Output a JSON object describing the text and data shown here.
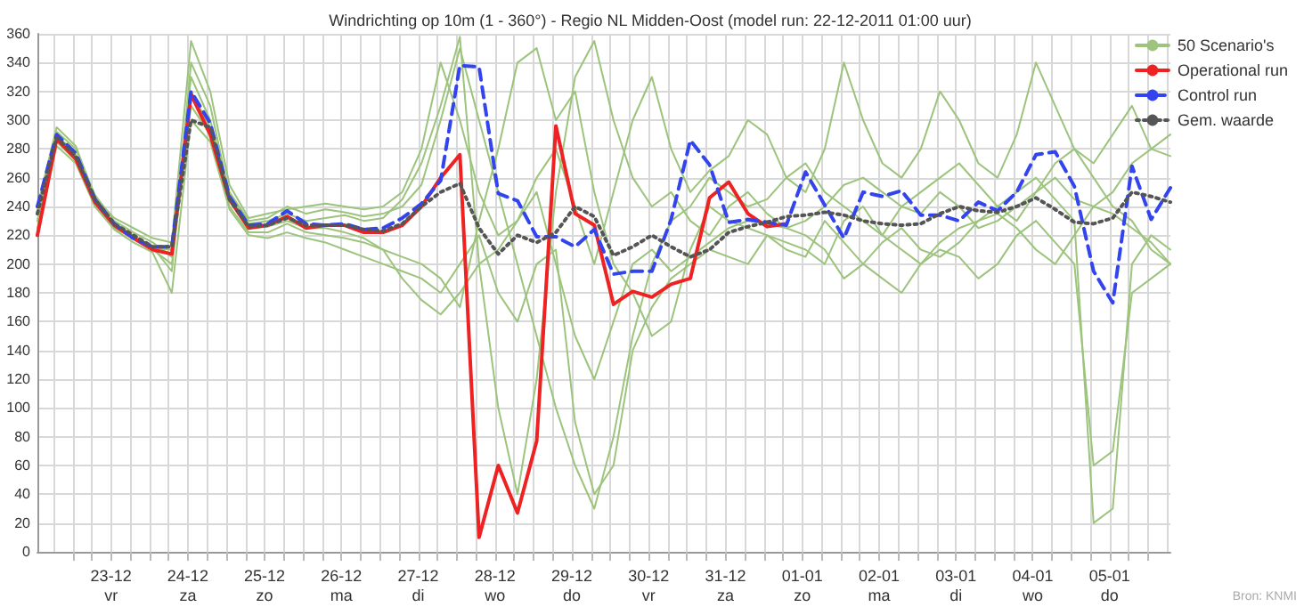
{
  "chart_data": {
    "type": "line",
    "title": "Windrichting op 10m (1 - 360°) - Regio NL Midden-Oost (model run: 22-12-2011 01:00 uur)",
    "annotations": [
      "Bron: KNMI"
    ],
    "x": [
      "2011-12-22T01:00",
      "2011-12-22T07:00",
      "2011-12-22T13:00",
      "2011-12-22T19:00",
      "2011-12-23T01:00",
      "2011-12-23T07:00",
      "2011-12-23T13:00",
      "2011-12-23T19:00",
      "2011-12-24T01:00",
      "2011-12-24T07:00",
      "2011-12-24T13:00",
      "2011-12-24T19:00",
      "2011-12-25T01:00",
      "2011-12-25T07:00",
      "2011-12-25T13:00",
      "2011-12-25T19:00",
      "2011-12-26T01:00",
      "2011-12-26T07:00",
      "2011-12-26T13:00",
      "2011-12-26T19:00",
      "2011-12-27T01:00",
      "2011-12-27T07:00",
      "2011-12-27T13:00",
      "2011-12-27T19:00",
      "2011-12-28T01:00",
      "2011-12-28T07:00",
      "2011-12-28T13:00",
      "2011-12-28T19:00",
      "2011-12-29T01:00",
      "2011-12-29T07:00",
      "2011-12-29T13:00",
      "2011-12-29T19:00",
      "2011-12-30T01:00",
      "2011-12-30T07:00",
      "2011-12-30T13:00",
      "2011-12-30T19:00",
      "2011-12-31T01:00",
      "2011-12-31T07:00",
      "2011-12-31T13:00",
      "2011-12-31T19:00",
      "2012-01-01T01:00",
      "2012-01-01T07:00",
      "2012-01-01T13:00",
      "2012-01-01T19:00",
      "2012-01-02T01:00",
      "2012-01-02T07:00",
      "2012-01-02T13:00",
      "2012-01-02T19:00",
      "2012-01-03T01:00",
      "2012-01-03T07:00",
      "2012-01-03T13:00",
      "2012-01-03T19:00",
      "2012-01-04T01:00",
      "2012-01-04T07:00",
      "2012-01-04T13:00",
      "2012-01-04T19:00",
      "2012-01-05T01:00",
      "2012-01-05T07:00",
      "2012-01-05T13:00",
      "2012-01-05T19:00"
    ],
    "series": [
      {
        "name": "50 Scenario's",
        "color": "#9cc47c",
        "line_style": "solid",
        "values": [
          235,
          292,
          280,
          248,
          230,
          222,
          215,
          205,
          330,
          300,
          250,
          230,
          232,
          240,
          235,
          238,
          236,
          233,
          235,
          240,
          255,
          300,
          350,
          300,
          250,
          200,
          150,
          100,
          60,
          30,
          80,
          150,
          200,
          230,
          240,
          260,
          250,
          240,
          245,
          260,
          270,
          250,
          240,
          230,
          220,
          240,
          250,
          260,
          270,
          255,
          240,
          230,
          250,
          260,
          245,
          240,
          250,
          270,
          280,
          275
        ]
      },
      {
        "color": "#9cc47c",
        "line_style": "solid",
        "values": [
          230,
          285,
          272,
          240,
          225,
          218,
          210,
          200,
          310,
          290,
          240,
          222,
          222,
          228,
          222,
          220,
          218,
          215,
          210,
          205,
          200,
          190,
          170,
          230,
          280,
          340,
          350,
          300,
          320,
          250,
          200,
          180,
          150,
          160,
          210,
          240,
          230,
          225,
          220,
          215,
          210,
          200,
          230,
          240,
          220,
          210,
          200,
          215,
          225,
          230,
          240,
          250,
          260,
          245,
          230,
          20,
          30,
          200,
          220,
          210
        ]
      },
      {
        "color": "#9cc47c",
        "line_style": "solid",
        "values": [
          238,
          290,
          276,
          244,
          228,
          220,
          212,
          195,
          340,
          310,
          248,
          228,
          230,
          235,
          230,
          232,
          234,
          230,
          232,
          245,
          270,
          310,
          358,
          200,
          100,
          40,
          120,
          250,
          330,
          355,
          300,
          260,
          240,
          250,
          230,
          220,
          240,
          250,
          235,
          225,
          230,
          240,
          255,
          260,
          250,
          240,
          235,
          250,
          240,
          225,
          230,
          240,
          250,
          270,
          280,
          260,
          240,
          230,
          210,
          200
        ]
      },
      {
        "color": "#9cc47c",
        "line_style": "solid",
        "values": [
          225,
          282,
          270,
          240,
          224,
          215,
          208,
          180,
          300,
          285,
          238,
          220,
          218,
          222,
          218,
          215,
          210,
          205,
          200,
          195,
          190,
          180,
          200,
          220,
          180,
          160,
          200,
          210,
          90,
          40,
          60,
          140,
          170,
          190,
          200,
          210,
          205,
          200,
          220,
          210,
          205,
          230,
          215,
          200,
          190,
          180,
          200,
          210,
          205,
          190,
          200,
          220,
          230,
          215,
          200,
          60,
          70,
          180,
          190,
          200
        ]
      },
      {
        "color": "#9cc47c",
        "line_style": "solid",
        "values": [
          240,
          295,
          282,
          246,
          232,
          225,
          218,
          215,
          355,
          320,
          255,
          232,
          235,
          238,
          240,
          242,
          240,
          238,
          240,
          250,
          280,
          340,
          300,
          250,
          220,
          230,
          260,
          280,
          240,
          200,
          250,
          300,
          330,
          280,
          250,
          265,
          275,
          300,
          290,
          260,
          250,
          280,
          340,
          300,
          270,
          260,
          280,
          320,
          300,
          270,
          260,
          290,
          340,
          310,
          280,
          270,
          290,
          310,
          280,
          290
        ]
      },
      {
        "color": "#9cc47c",
        "line_style": "solid",
        "values": [
          230,
          288,
          275,
          244,
          227,
          219,
          211,
          210,
          320,
          295,
          244,
          225,
          226,
          230,
          225,
          225,
          222,
          218,
          210,
          190,
          175,
          165,
          180,
          200,
          210,
          230,
          250,
          200,
          150,
          120,
          160,
          200,
          210,
          195,
          205,
          215,
          225,
          230,
          228,
          225,
          220,
          210,
          190,
          200,
          215,
          225,
          210,
          205,
          215,
          230,
          235,
          225,
          210,
          200,
          220,
          240,
          235,
          225,
          215,
          200
        ]
      },
      {
        "name": "Operational run",
        "color": "#ee2222",
        "line_style": "solid",
        "values": [
          220,
          287,
          273,
          243,
          227,
          218,
          210,
          207,
          318,
          290,
          245,
          225,
          227,
          233,
          225,
          227,
          227,
          222,
          222,
          227,
          240,
          260,
          276,
          10,
          60,
          27,
          77,
          296,
          235,
          227,
          172,
          181,
          177,
          186,
          190,
          246,
          257,
          235,
          226,
          228,
          null,
          null,
          null,
          null,
          null,
          null,
          null,
          null,
          null,
          null,
          null,
          null,
          null,
          null,
          null,
          null,
          null,
          null,
          null,
          null
        ]
      },
      {
        "name": "Control run",
        "color": "#3344ee",
        "line_style": "dashed",
        "values": [
          240,
          290,
          277,
          245,
          228,
          218,
          212,
          212,
          320,
          298,
          247,
          227,
          228,
          237,
          228,
          227,
          228,
          224,
          225,
          232,
          242,
          258,
          338,
          337,
          249,
          244,
          219,
          219,
          212,
          224,
          193,
          195,
          195,
          231,
          286,
          269,
          229,
          231,
          229,
          227,
          264,
          241,
          218,
          250,
          247,
          251,
          234,
          234,
          230,
          243,
          237,
          250,
          276,
          278,
          254,
          195,
          173,
          268,
          231,
          253
        ]
      },
      {
        "name": "Gem. waarde",
        "color": "#555555",
        "line_style": "dotted",
        "values": [
          235,
          288,
          275,
          245,
          228,
          220,
          212,
          212,
          300,
          295,
          245,
          226,
          227,
          232,
          227,
          227,
          227,
          224,
          223,
          228,
          240,
          250,
          256,
          225,
          207,
          220,
          215,
          222,
          240,
          233,
          206,
          212,
          220,
          212,
          205,
          210,
          222,
          226,
          229,
          233,
          234,
          236,
          234,
          230,
          228,
          227,
          228,
          235,
          240,
          237,
          236,
          240,
          246,
          238,
          229,
          228,
          232,
          250,
          247,
          243
        ]
      }
    ],
    "xlim": [
      "2011-12-22T01:00",
      "2012-01-05T19:00"
    ],
    "xticks": [
      {
        "value": "2011-12-22T06:00",
        "label": null
      },
      {
        "value": "2011-12-22T12:00",
        "label": null
      },
      {
        "value": "2011-12-22T18:00",
        "label": null
      },
      {
        "value": "2011-12-23T00:00",
        "label": "23-12\nvr"
      },
      {
        "value": "2011-12-23T06:00",
        "label": null
      },
      {
        "value": "2011-12-23T12:00",
        "label": null
      },
      {
        "value": "2011-12-23T18:00",
        "label": null
      },
      {
        "value": "2011-12-24T00:00",
        "label": "24-12\nza"
      },
      {
        "value": "2011-12-24T06:00",
        "label": null
      },
      {
        "value": "2011-12-24T12:00",
        "label": null
      },
      {
        "value": "2011-12-24T18:00",
        "label": null
      },
      {
        "value": "2011-12-25T00:00",
        "label": "25-12\nzo"
      },
      {
        "value": "2011-12-25T06:00",
        "label": null
      },
      {
        "value": "2011-12-25T12:00",
        "label": null
      },
      {
        "value": "2011-12-25T18:00",
        "label": null
      },
      {
        "value": "2011-12-26T00:00",
        "label": "26-12\nma"
      },
      {
        "value": "2011-12-26T06:00",
        "label": null
      },
      {
        "value": "2011-12-26T12:00",
        "label": null
      },
      {
        "value": "2011-12-26T18:00",
        "label": null
      },
      {
        "value": "2011-12-27T00:00",
        "label": "27-12\ndi"
      },
      {
        "value": "2011-12-27T06:00",
        "label": null
      },
      {
        "value": "2011-12-27T12:00",
        "label": null
      },
      {
        "value": "2011-12-27T18:00",
        "label": null
      },
      {
        "value": "2011-12-28T00:00",
        "label": "28-12\nwo"
      },
      {
        "value": "2011-12-28T06:00",
        "label": null
      },
      {
        "value": "2011-12-28T12:00",
        "label": null
      },
      {
        "value": "2011-12-28T18:00",
        "label": null
      },
      {
        "value": "2011-12-29T00:00",
        "label": "29-12\ndo"
      },
      {
        "value": "2011-12-29T06:00",
        "label": null
      },
      {
        "value": "2011-12-29T12:00",
        "label": null
      },
      {
        "value": "2011-12-29T18:00",
        "label": null
      },
      {
        "value": "2011-12-30T00:00",
        "label": "30-12\nvr"
      },
      {
        "value": "2011-12-30T06:00",
        "label": null
      },
      {
        "value": "2011-12-30T12:00",
        "label": null
      },
      {
        "value": "2011-12-30T18:00",
        "label": null
      },
      {
        "value": "2011-12-31T00:00",
        "label": "31-12\nza"
      },
      {
        "value": "2011-12-31T06:00",
        "label": null
      },
      {
        "value": "2011-12-31T12:00",
        "label": null
      },
      {
        "value": "2011-12-31T18:00",
        "label": null
      },
      {
        "value": "2012-01-01T00:00",
        "label": "01-01\nzo"
      },
      {
        "value": "2012-01-01T06:00",
        "label": null
      },
      {
        "value": "2012-01-01T12:00",
        "label": null
      },
      {
        "value": "2012-01-01T18:00",
        "label": null
      },
      {
        "value": "2012-01-02T00:00",
        "label": "02-01\nma"
      },
      {
        "value": "2012-01-02T06:00",
        "label": null
      },
      {
        "value": "2012-01-02T12:00",
        "label": null
      },
      {
        "value": "2012-01-02T18:00",
        "label": null
      },
      {
        "value": "2012-01-03T00:00",
        "label": "03-01\ndi"
      },
      {
        "value": "2012-01-03T06:00",
        "label": null
      },
      {
        "value": "2012-01-03T12:00",
        "label": null
      },
      {
        "value": "2012-01-03T18:00",
        "label": null
      },
      {
        "value": "2012-01-04T00:00",
        "label": "04-01\nwo"
      },
      {
        "value": "2012-01-04T06:00",
        "label": null
      },
      {
        "value": "2012-01-04T12:00",
        "label": null
      },
      {
        "value": "2012-01-04T18:00",
        "label": null
      },
      {
        "value": "2012-01-05T00:00",
        "label": "05-01\ndo"
      },
      {
        "value": "2012-01-05T06:00",
        "label": null
      },
      {
        "value": "2012-01-05T12:00",
        "label": null
      },
      {
        "value": "2012-01-05T18:00",
        "label": null
      }
    ],
    "ylim": [
      0,
      360
    ],
    "yticks": [
      0,
      20,
      40,
      60,
      80,
      100,
      120,
      140,
      160,
      180,
      200,
      220,
      240,
      260,
      280,
      300,
      320,
      340,
      360
    ],
    "grid": true,
    "legend": "top right",
    "marker": "none"
  }
}
